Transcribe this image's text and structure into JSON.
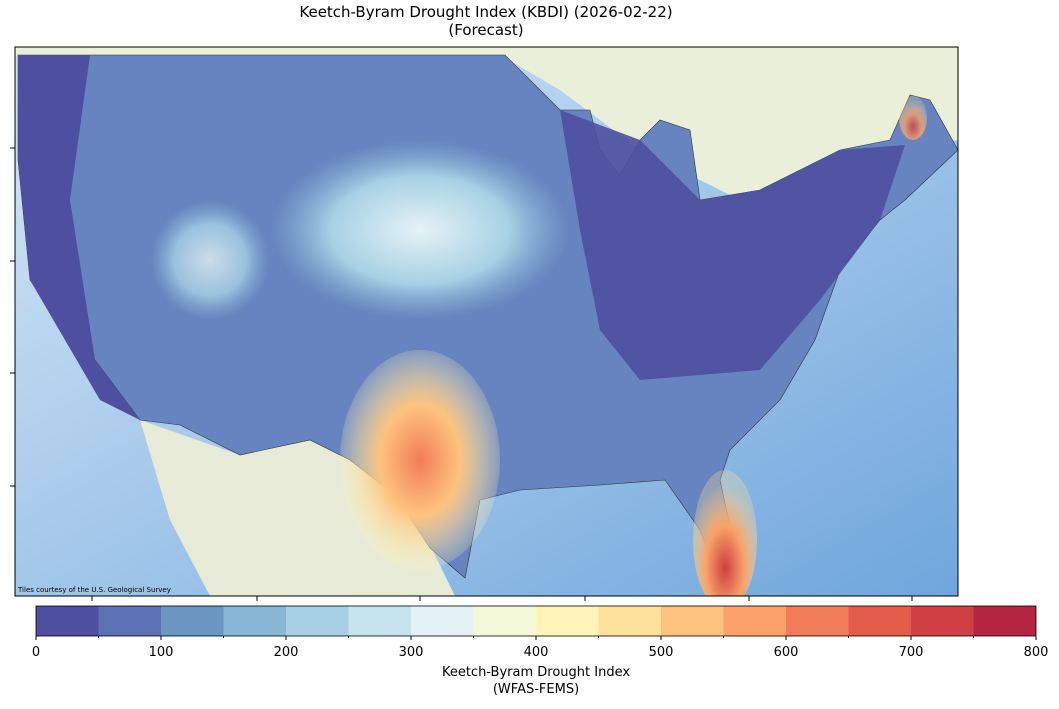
{
  "title": [
    "Keetch-Byram Drought Index (KBDI) (2026-02-22)",
    "(Forecast)"
  ],
  "attribution": "Tiles courtesy of the U.S. Geological Survey",
  "colorbar": {
    "label": [
      "Keetch-Byram Drought Index",
      "(WFAS-FEMS)"
    ],
    "xlim": [
      0,
      800
    ],
    "bounds": [
      0,
      50,
      100,
      150,
      200,
      250,
      300,
      350,
      400,
      450,
      500,
      550,
      600,
      650,
      700,
      750,
      800
    ],
    "colors": [
      "#4e4fa0",
      "#5a72b3",
      "#6b96c2",
      "#88b7d6",
      "#a7d0e4",
      "#c6e4ee",
      "#e5f2f5",
      "#f4f9d9",
      "#fef4b8",
      "#fee19a",
      "#fdc37e",
      "#f9a168",
      "#f17c57",
      "#e45d4a",
      "#cf3f43",
      "#b52542"
    ],
    "ticks": [
      0,
      100,
      200,
      300,
      400,
      500,
      600,
      700,
      800
    ],
    "minor_ticks": [
      50,
      150,
      250,
      350,
      450,
      550,
      650,
      750
    ]
  }
}
